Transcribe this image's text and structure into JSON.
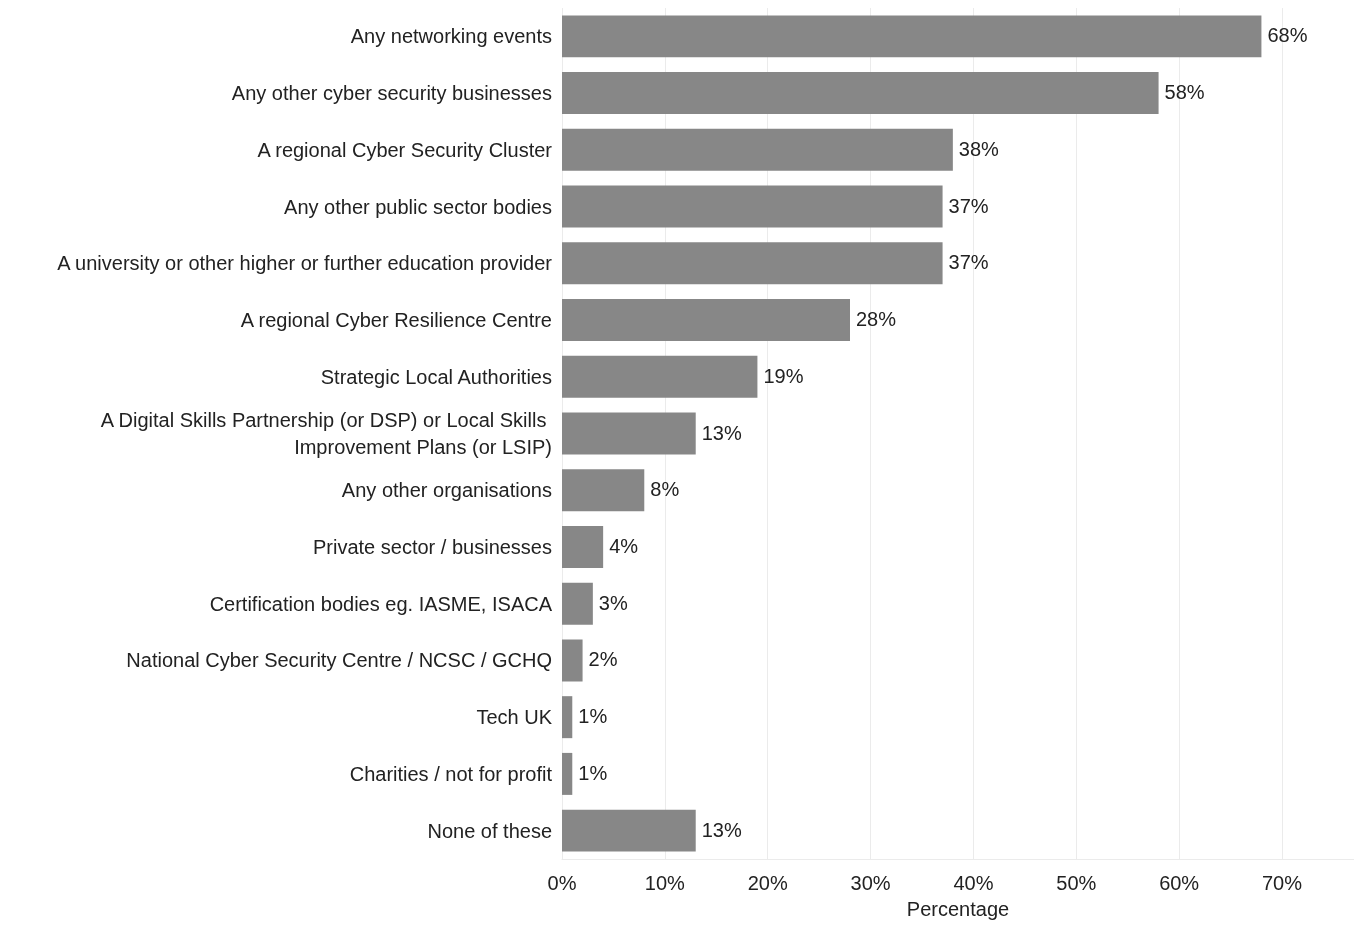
{
  "chart_data": {
    "type": "bar",
    "orientation": "horizontal",
    "xlabel": "Percentage",
    "categories": [
      "Any networking events",
      "Any other cyber security businesses",
      "A regional Cyber Security Cluster",
      "Any other public sector bodies",
      "A university or other higher or further education provider",
      "A regional Cyber Resilience Centre",
      "Strategic Local Authorities",
      "A Digital Skills Partnership (or DSP) or Local Skills Improvement Plans (or LSIP)",
      "Any other organisations",
      "Private sector / businesses",
      "Certification bodies eg. IASME, ISACA",
      "National Cyber Security Centre / NCSC / GCHQ",
      "Tech UK",
      "Charities / not for profit",
      "None of these"
    ],
    "values": [
      68,
      58,
      38,
      37,
      37,
      28,
      19,
      13,
      8,
      4,
      3,
      2,
      1,
      1,
      13
    ],
    "value_labels": [
      "68%",
      "58%",
      "38%",
      "37%",
      "37%",
      "28%",
      "19%",
      "13%",
      "8%",
      "4%",
      "3%",
      "2%",
      "1%",
      "1%",
      "13%"
    ],
    "color": "#878787",
    "xlim": [
      0,
      77
    ],
    "xticks": [
      {
        "value": 0,
        "label": "0%"
      },
      {
        "value": 10,
        "label": "10%"
      },
      {
        "value": 20,
        "label": "20%"
      },
      {
        "value": 30,
        "label": "30%"
      },
      {
        "value": 40,
        "label": "40%"
      },
      {
        "value": 50,
        "label": "50%"
      },
      {
        "value": 60,
        "label": "60%"
      },
      {
        "value": 70,
        "label": "70%"
      }
    ],
    "grid": "x"
  }
}
